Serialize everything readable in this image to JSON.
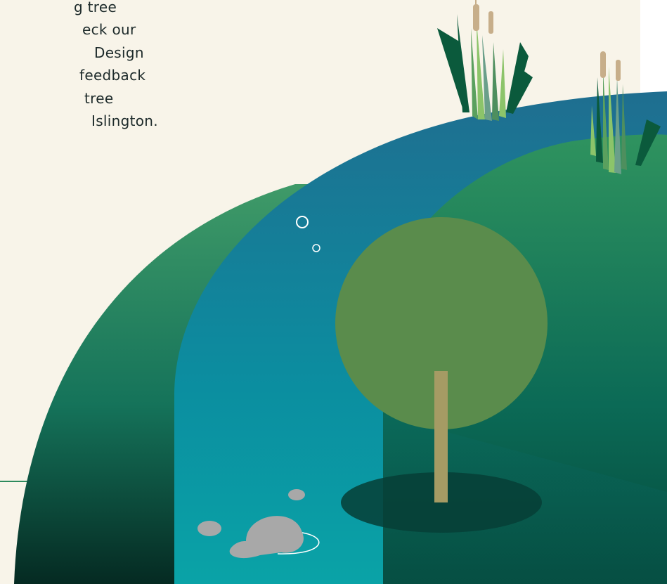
{
  "intro": {
    "lines": [
      "g tree",
      "eck our",
      "Design",
      "feedback",
      "tree",
      "Islington."
    ]
  },
  "colors": {
    "background": "#f8f4e9",
    "hill_green": "#1f7a56",
    "river_blue": "#1c7a93",
    "tree_canopy": "#5a8c4c",
    "tree_trunk": "#a59b64",
    "stone": "#a8a8a8"
  },
  "illustration": {
    "elements": [
      "green-hill",
      "river",
      "tree",
      "tree-shadow",
      "reeds",
      "stones",
      "bubbles"
    ]
  }
}
